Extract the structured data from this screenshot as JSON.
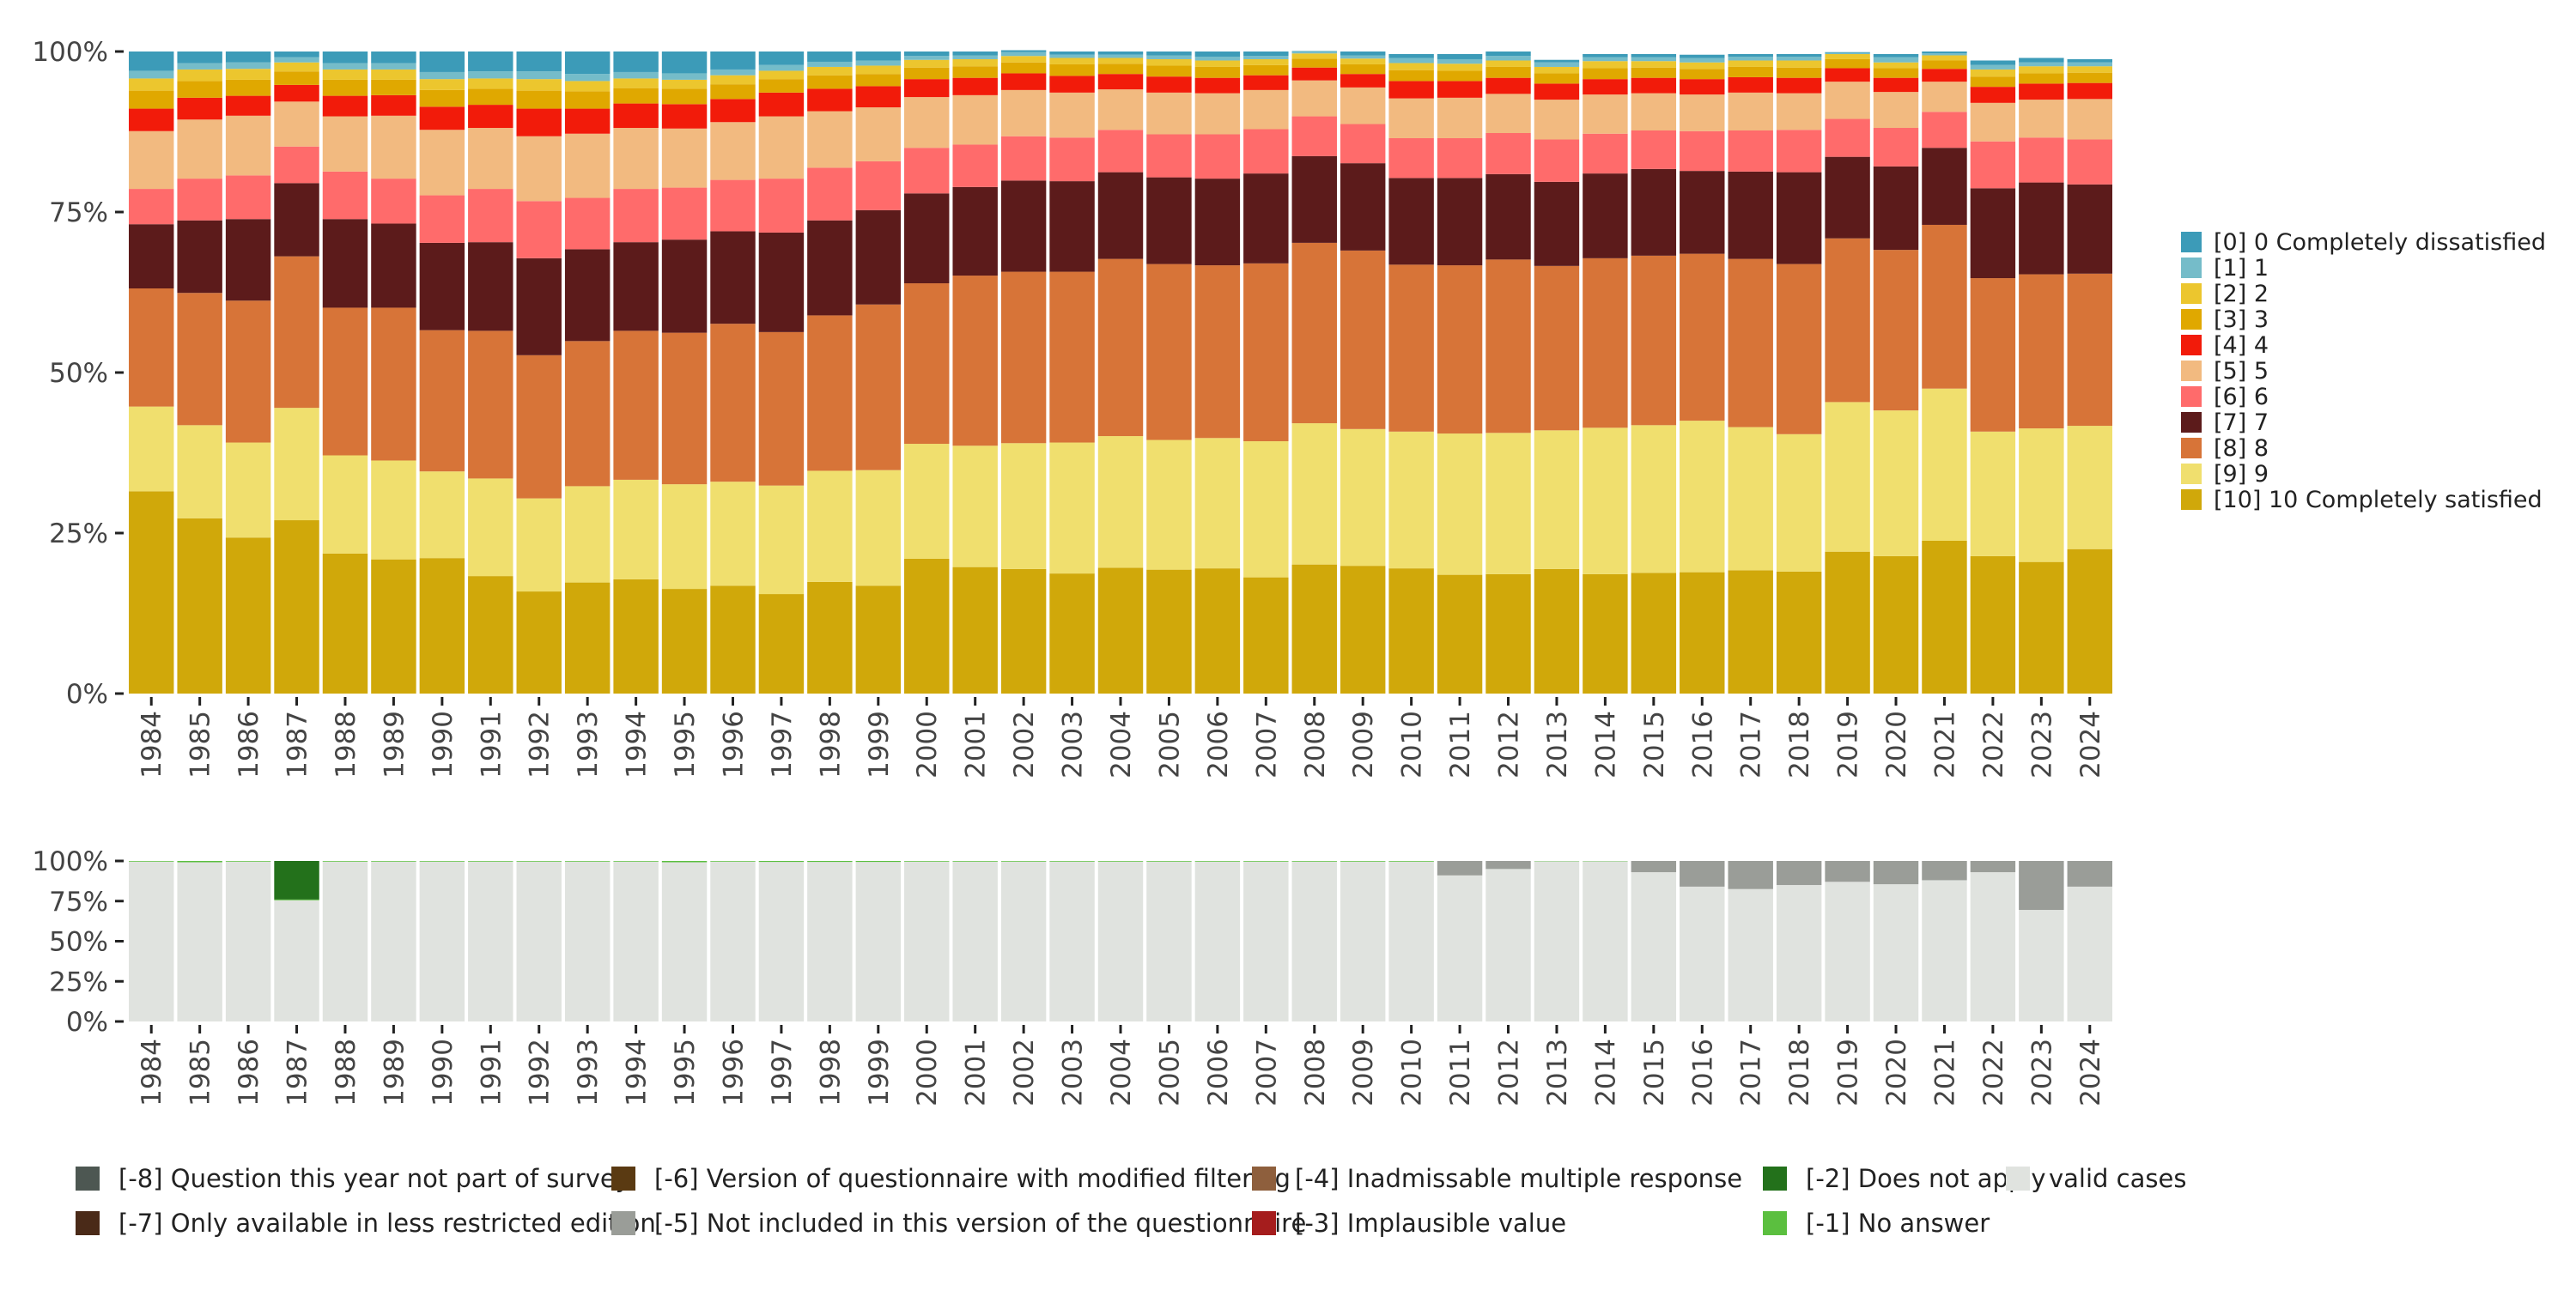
{
  "chart_data": [
    {
      "type": "bar",
      "stacked": true,
      "normalized": true,
      "title": "",
      "xlabel": "",
      "ylabel": "",
      "ylim": [
        0,
        100
      ],
      "yticks": [
        "0%",
        "25%",
        "50%",
        "75%",
        "100%"
      ],
      "legend_position": "right",
      "categories": [
        "1984",
        "1985",
        "1986",
        "1987",
        "1988",
        "1989",
        "1990",
        "1991",
        "1992",
        "1993",
        "1994",
        "1995",
        "1996",
        "1997",
        "1998",
        "1999",
        "2000",
        "2001",
        "2002",
        "2003",
        "2004",
        "2005",
        "2006",
        "2007",
        "2008",
        "2009",
        "2010",
        "2011",
        "2012",
        "2013",
        "2014",
        "2015",
        "2016",
        "2017",
        "2018",
        "2019",
        "2020",
        "2021",
        "2022",
        "2023",
        "2024"
      ],
      "series": [
        {
          "name": "[10] 10 Completely satisfied",
          "color": "#D0A80A",
          "values": [
            31.5,
            27.3,
            24.3,
            27.0,
            21.8,
            20.9,
            21.1,
            18.3,
            15.9,
            17.3,
            17.8,
            16.3,
            16.8,
            15.5,
            17.4,
            16.8,
            21.0,
            19.7,
            19.4,
            18.7,
            19.6,
            19.3,
            19.5,
            18.1,
            20.1,
            19.9,
            19.5,
            18.5,
            18.6,
            19.4,
            18.6,
            18.8,
            18.9,
            19.2,
            19.0,
            22.1,
            21.4,
            23.8,
            21.4,
            20.5,
            22.5
          ]
        },
        {
          "name": "[9] 9",
          "color": "#F0DF6E",
          "values": [
            13.2,
            14.5,
            14.8,
            17.5,
            15.3,
            15.4,
            13.5,
            15.2,
            14.5,
            15.0,
            15.5,
            16.3,
            16.2,
            16.9,
            17.3,
            18.0,
            17.9,
            18.9,
            19.6,
            20.4,
            20.5,
            20.2,
            20.3,
            21.2,
            22.0,
            21.3,
            21.3,
            22.0,
            22.0,
            21.6,
            22.8,
            23.0,
            23.6,
            22.3,
            21.4,
            23.3,
            22.7,
            23.7,
            19.4,
            20.8,
            19.2
          ]
        },
        {
          "name": "[8] 8",
          "color": "#D77438",
          "values": [
            18.4,
            20.6,
            22.1,
            23.6,
            23.0,
            23.8,
            22.0,
            23.0,
            22.3,
            22.6,
            23.2,
            23.6,
            24.6,
            23.9,
            24.2,
            25.8,
            25.0,
            26.5,
            26.7,
            26.6,
            27.6,
            27.4,
            26.9,
            27.7,
            28.1,
            27.8,
            26.0,
            26.2,
            27.0,
            25.6,
            26.4,
            26.4,
            26.0,
            26.2,
            26.5,
            25.5,
            25.0,
            25.5,
            23.9,
            24.0,
            23.7
          ]
        },
        {
          "name": "[7] 7",
          "color": "#5C1B1B",
          "values": [
            10.0,
            11.3,
            12.7,
            11.4,
            13.8,
            13.1,
            13.6,
            13.8,
            15.1,
            14.3,
            13.8,
            14.5,
            14.4,
            15.5,
            14.8,
            14.7,
            14.0,
            13.8,
            14.2,
            14.1,
            13.5,
            13.5,
            13.5,
            14.0,
            13.5,
            13.6,
            13.5,
            13.6,
            13.3,
            13.1,
            13.2,
            13.5,
            12.9,
            13.6,
            14.3,
            12.7,
            13.0,
            12.0,
            14.0,
            14.3,
            13.9
          ]
        },
        {
          "name": "[6] 6",
          "color": "#FF6B6B",
          "values": [
            5.5,
            6.5,
            6.8,
            5.7,
            7.4,
            7.0,
            7.4,
            8.3,
            8.9,
            8.0,
            8.3,
            8.1,
            8.0,
            8.4,
            8.2,
            7.6,
            7.1,
            6.6,
            6.9,
            6.8,
            6.6,
            6.7,
            6.9,
            6.9,
            6.2,
            6.1,
            6.2,
            6.2,
            6.4,
            6.6,
            6.2,
            6.0,
            6.2,
            6.4,
            6.6,
            5.9,
            6.0,
            5.6,
            7.3,
            7.0,
            7.0
          ]
        },
        {
          "name": "[5] 5",
          "color": "#F2BA80",
          "values": [
            9.0,
            9.2,
            9.3,
            7.0,
            8.6,
            9.8,
            10.2,
            9.5,
            10.1,
            10.0,
            9.5,
            9.2,
            9.0,
            9.7,
            8.8,
            8.4,
            7.9,
            7.7,
            7.2,
            7.0,
            6.3,
            6.5,
            6.4,
            6.1,
            5.6,
            5.7,
            6.2,
            6.3,
            6.1,
            6.2,
            6.1,
            5.8,
            5.7,
            5.9,
            5.7,
            5.8,
            5.6,
            4.7,
            6.0,
            5.9,
            6.3
          ]
        },
        {
          "name": "[4] 4",
          "color": "#F21B0A",
          "values": [
            3.5,
            3.4,
            3.1,
            2.6,
            3.2,
            3.2,
            3.6,
            3.6,
            4.3,
            3.9,
            3.8,
            3.8,
            3.6,
            3.7,
            3.5,
            3.3,
            2.8,
            2.7,
            2.6,
            2.6,
            2.4,
            2.5,
            2.4,
            2.3,
            2.0,
            2.1,
            2.7,
            2.6,
            2.5,
            2.5,
            2.4,
            2.4,
            2.4,
            2.4,
            2.4,
            2.1,
            2.2,
            2.0,
            2.5,
            2.5,
            2.5
          ]
        },
        {
          "name": "[3] 3",
          "color": "#E0A800",
          "values": [
            2.8,
            2.6,
            2.5,
            2.1,
            2.5,
            2.4,
            2.6,
            2.5,
            2.8,
            2.7,
            2.4,
            2.4,
            2.3,
            2.1,
            2.1,
            1.9,
            1.8,
            1.8,
            1.7,
            1.8,
            1.6,
            1.7,
            1.7,
            1.6,
            1.4,
            1.5,
            1.7,
            1.6,
            1.7,
            1.6,
            1.7,
            1.6,
            1.6,
            1.6,
            1.6,
            1.4,
            1.5,
            1.3,
            1.6,
            1.6,
            1.6
          ]
        },
        {
          "name": "[2] 2",
          "color": "#ECC62E",
          "values": [
            1.9,
            1.8,
            1.7,
            1.4,
            1.6,
            1.6,
            1.7,
            1.6,
            1.8,
            1.6,
            1.5,
            1.4,
            1.4,
            1.3,
            1.3,
            1.3,
            1.2,
            1.1,
            1.0,
            1.0,
            0.9,
            1.0,
            1.0,
            0.9,
            0.8,
            0.9,
            1.1,
            1.1,
            1.0,
            1.0,
            1.1,
            1.0,
            1.0,
            1.0,
            1.1,
            0.8,
            0.9,
            0.8,
            1.1,
            1.1,
            1.0
          ]
        },
        {
          "name": "[1] 1",
          "color": "#75BCC9",
          "values": [
            1.2,
            1.0,
            1.0,
            0.8,
            1.0,
            1.0,
            1.1,
            1.1,
            1.2,
            1.1,
            1.0,
            1.0,
            0.9,
            0.9,
            0.8,
            0.8,
            0.6,
            0.6,
            0.6,
            0.5,
            0.5,
            0.6,
            0.6,
            0.5,
            0.4,
            0.5,
            0.8,
            0.7,
            0.7,
            0.7,
            0.6,
            0.6,
            0.7,
            0.6,
            0.6,
            0.2,
            0.8,
            0.3,
            0.7,
            0.6,
            0.6
          ]
        },
        {
          "name": "[0] 0 Completely dissatisfied",
          "color": "#3C9BB8",
          "values": [
            3.0,
            1.8,
            1.7,
            0.9,
            1.8,
            1.8,
            3.2,
            3.1,
            3.1,
            3.5,
            3.2,
            3.4,
            2.8,
            2.1,
            1.6,
            1.4,
            0.7,
            0.6,
            0.3,
            0.5,
            0.5,
            0.6,
            0.8,
            0.7,
            0.0,
            0.6,
            0.6,
            0.8,
            0.7,
            0.4,
            0.5,
            0.5,
            0.5,
            0.4,
            0.4,
            0.1,
            0.5,
            0.3,
            0.7,
            0.7,
            0.5
          ]
        }
      ]
    },
    {
      "type": "bar",
      "stacked": true,
      "normalized": true,
      "title": "",
      "xlabel": "",
      "ylabel": "",
      "ylim": [
        0,
        100
      ],
      "yticks": [
        "0%",
        "25%",
        "50%",
        "75%",
        "100%"
      ],
      "legend_position": "bottom",
      "categories": [
        "1984",
        "1985",
        "1986",
        "1987",
        "1988",
        "1989",
        "1990",
        "1991",
        "1992",
        "1993",
        "1994",
        "1995",
        "1996",
        "1997",
        "1998",
        "1999",
        "2000",
        "2001",
        "2002",
        "2003",
        "2004",
        "2005",
        "2006",
        "2007",
        "2008",
        "2009",
        "2010",
        "2011",
        "2012",
        "2013",
        "2014",
        "2015",
        "2016",
        "2017",
        "2018",
        "2019",
        "2020",
        "2021",
        "2022",
        "2023",
        "2024"
      ],
      "series": [
        {
          "name": "valid cases",
          "color": "#E0E3DF",
          "values": [
            99.6,
            99.2,
            99.6,
            75.5,
            99.6,
            99.6,
            99.6,
            99.6,
            99.6,
            99.6,
            99.6,
            99.2,
            99.6,
            99.4,
            99.4,
            99.4,
            99.6,
            99.6,
            99.6,
            99.6,
            99.6,
            99.6,
            99.6,
            99.6,
            99.6,
            99.6,
            99.6,
            91.0,
            95.0,
            99.8,
            99.8,
            93.0,
            84.0,
            82.5,
            85.0,
            87.0,
            85.5,
            88.0,
            93.0,
            69.5,
            84.0
          ]
        },
        {
          "name": "[-1] No answer",
          "color": "#5BBF3F",
          "values": [
            0.4,
            0.8,
            0.4,
            0.5,
            0.4,
            0.4,
            0.4,
            0.4,
            0.4,
            0.4,
            0.4,
            0.8,
            0.4,
            0.6,
            0.6,
            0.6,
            0.4,
            0.4,
            0.4,
            0.4,
            0.4,
            0.4,
            0.4,
            0.4,
            0.4,
            0.4,
            0.4,
            0.0,
            0.0,
            0.2,
            0.2,
            0.0,
            0.0,
            0.0,
            0.0,
            0.0,
            0.0,
            0.0,
            0.0,
            0.0,
            0.0
          ]
        },
        {
          "name": "[-2] Does not apply",
          "color": "#23711B",
          "values": [
            0,
            0,
            0,
            24.0,
            0,
            0,
            0,
            0,
            0,
            0,
            0,
            0,
            0,
            0,
            0,
            0,
            0,
            0,
            0,
            0,
            0,
            0,
            0,
            0,
            0,
            0,
            0,
            0,
            0,
            0,
            0,
            0,
            0,
            0,
            0,
            0,
            0,
            0,
            0,
            0,
            0
          ]
        },
        {
          "name": "[-3] Implausible value",
          "color": "#A51D1D",
          "values": [
            0,
            0,
            0,
            0,
            0,
            0,
            0,
            0,
            0,
            0,
            0,
            0,
            0,
            0,
            0,
            0,
            0,
            0,
            0,
            0,
            0,
            0,
            0,
            0,
            0,
            0,
            0,
            0,
            0,
            0,
            0,
            0,
            0,
            0,
            0,
            0,
            0,
            0,
            0,
            0,
            0
          ]
        },
        {
          "name": "[-4] Inadmissable multiple response",
          "color": "#8E5F3D",
          "values": [
            0,
            0,
            0,
            0,
            0,
            0,
            0,
            0,
            0,
            0,
            0,
            0,
            0,
            0,
            0,
            0,
            0,
            0,
            0,
            0,
            0,
            0,
            0,
            0,
            0,
            0,
            0,
            0,
            0,
            0,
            0,
            0,
            0,
            0,
            0,
            0,
            0,
            0,
            0,
            0,
            0
          ]
        },
        {
          "name": "[-5] Not included in this version of the questionnaire",
          "color": "#9A9D98",
          "values": [
            0,
            0,
            0,
            0,
            0,
            0,
            0,
            0,
            0,
            0,
            0,
            0,
            0,
            0,
            0,
            0,
            0,
            0,
            0,
            0,
            0,
            0,
            0,
            0,
            0,
            0,
            0,
            9.0,
            5.0,
            0,
            0,
            7.0,
            16.0,
            17.5,
            15.0,
            13.0,
            14.5,
            12.0,
            7.0,
            30.5,
            16.0
          ]
        },
        {
          "name": "[-6] Version of questionnaire with modified filtering",
          "color": "#5A3A12",
          "values": [
            0,
            0,
            0,
            0,
            0,
            0,
            0,
            0,
            0,
            0,
            0,
            0,
            0,
            0,
            0,
            0,
            0,
            0,
            0,
            0,
            0,
            0,
            0,
            0,
            0,
            0,
            0,
            0,
            0,
            0,
            0,
            0,
            0,
            0,
            0,
            0,
            0,
            0,
            0,
            0,
            0
          ]
        },
        {
          "name": "[-7] Only available in less restricted edition",
          "color": "#4A2A18",
          "values": [
            0,
            0,
            0,
            0,
            0,
            0,
            0,
            0,
            0,
            0,
            0,
            0,
            0,
            0,
            0,
            0,
            0,
            0,
            0,
            0,
            0,
            0,
            0,
            0,
            0,
            0,
            0,
            0,
            0,
            0,
            0,
            0,
            0,
            0,
            0,
            0,
            0,
            0,
            0,
            0,
            0
          ]
        },
        {
          "name": "[-8] Question this year not part of survey",
          "color": "#4D5752",
          "values": [
            0,
            0,
            0,
            0,
            0,
            0,
            0,
            0,
            0,
            0,
            0,
            0,
            0,
            0,
            0,
            0,
            0,
            0,
            0,
            0,
            0,
            0,
            0,
            0,
            0,
            0,
            0,
            0,
            0,
            0,
            0,
            0,
            0,
            0,
            0,
            0,
            0,
            0,
            0,
            0,
            0
          ]
        }
      ],
      "legend_order": [
        "[-8] Question this year not part of survey",
        "[-7] Only available in less restricted edition",
        "[-6] Version of questionnaire with modified filtering",
        "[-5] Not included in this version of the questionnaire",
        "[-4] Inadmissable multiple response",
        "[-3] Implausible value",
        "[-2] Does not apply",
        "[-1] No answer",
        "valid cases"
      ]
    }
  ]
}
